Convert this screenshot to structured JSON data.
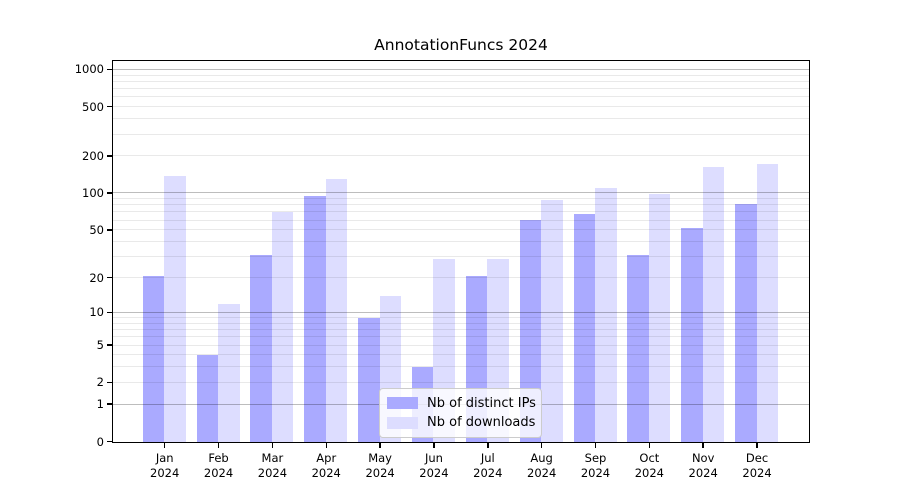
{
  "title": "AnnotationFuncs 2024",
  "chart_data": {
    "type": "bar",
    "title": "AnnotationFuncs 2024",
    "categories": [
      "Jan 2024",
      "Feb 2024",
      "Mar 2024",
      "Apr 2024",
      "May 2024",
      "Jun 2024",
      "Jul 2024",
      "Aug 2024",
      "Sep 2024",
      "Oct 2024",
      "Nov 2024",
      "Dec 2024"
    ],
    "series": [
      {
        "name": "Nb of distinct IPs",
        "color": "#aaaaff",
        "values": [
          21,
          4,
          31,
          96,
          9,
          3,
          21,
          61,
          68,
          31,
          52,
          82
        ]
      },
      {
        "name": "Nb of downloads",
        "color": "#ddddff",
        "values": [
          140,
          12,
          70,
          132,
          14,
          29,
          29,
          88,
          110,
          99,
          164,
          175
        ]
      }
    ],
    "xlabel": "",
    "ylabel": "",
    "yscale": "log1p",
    "y_ticks": [
      0,
      1,
      2,
      5,
      10,
      20,
      50,
      100,
      200,
      500,
      1000
    ],
    "y_major_gridlines": [
      1,
      10,
      100,
      1000
    ],
    "ylim": [
      0,
      1200
    ],
    "grid": true,
    "legend_position": "lower-center-inside"
  }
}
